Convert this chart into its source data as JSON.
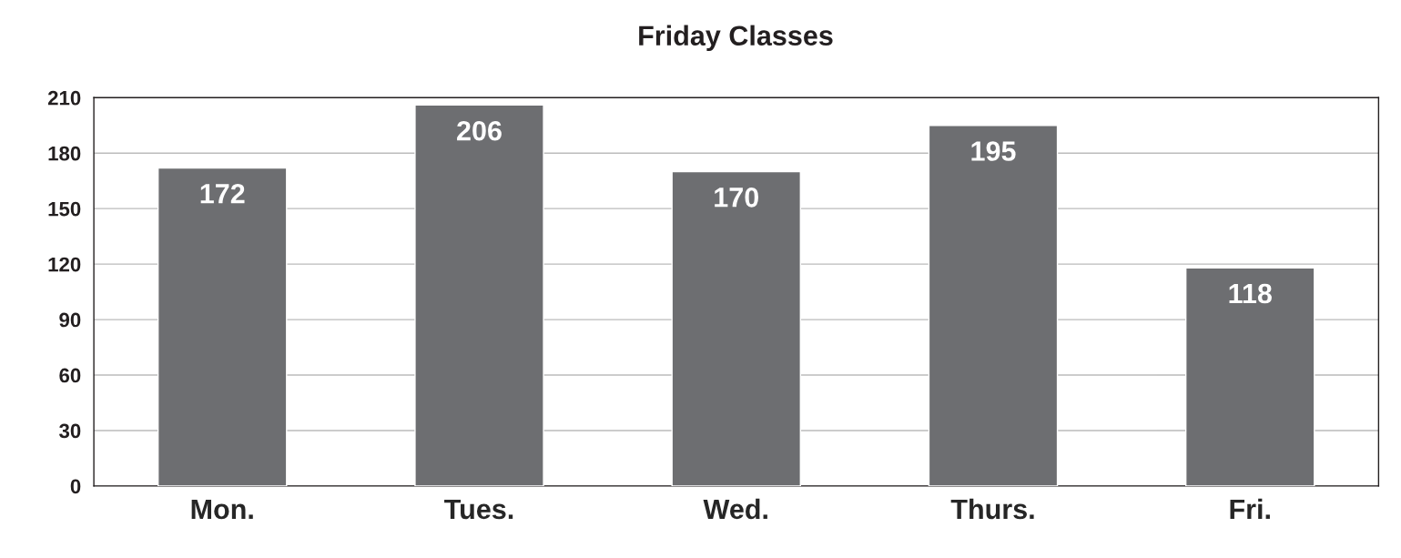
{
  "chart_data": {
    "type": "bar",
    "title": "Friday Classes",
    "categories": [
      "Mon.",
      "Tues.",
      "Wed.",
      "Thurs.",
      "Fri."
    ],
    "values": [
      172,
      206,
      170,
      195,
      118
    ],
    "color": "#6d6e71",
    "ylim": [
      0,
      210
    ],
    "yticks": [
      0,
      30,
      60,
      90,
      120,
      150,
      180,
      210
    ],
    "grid": "y",
    "data_labels": true,
    "legend": false
  }
}
